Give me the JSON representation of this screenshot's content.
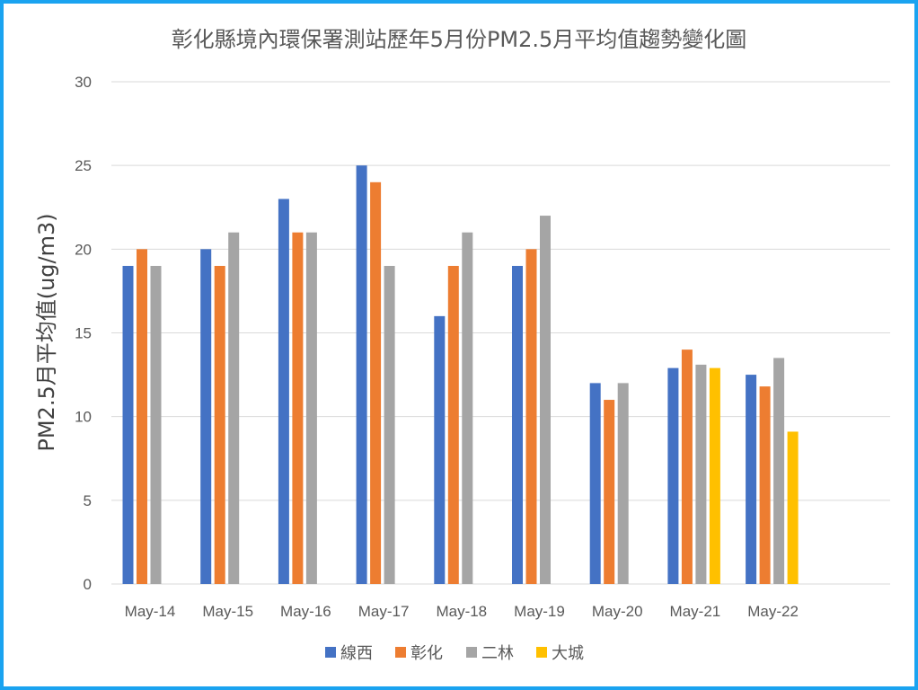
{
  "chart_data": {
    "type": "bar",
    "title": "彰化縣境內環保署測站歷年5月份PM2.5月平均值趨勢變化圖",
    "xlabel": "",
    "ylabel": "PM2.5月平均值(ug/m3)",
    "ylim": [
      0,
      30
    ],
    "yticks": [
      0,
      5,
      10,
      15,
      20,
      25,
      30
    ],
    "grid": true,
    "legend_position": "bottom",
    "categories": [
      "May-14",
      "May-15",
      "May-16",
      "May-17",
      "May-18",
      "May-19",
      "May-20",
      "May-21",
      "May-22"
    ],
    "series": [
      {
        "name": "線西",
        "color": "#4472c4",
        "values": [
          19,
          20,
          23,
          25,
          16,
          19,
          12,
          12.9,
          12.5
        ]
      },
      {
        "name": "彰化",
        "color": "#ed7d31",
        "values": [
          20,
          19,
          21,
          24,
          19,
          20,
          11,
          14,
          11.8
        ]
      },
      {
        "name": "二林",
        "color": "#a5a5a5",
        "values": [
          19,
          21,
          21,
          19,
          21,
          22,
          12,
          13.1,
          13.5
        ]
      },
      {
        "name": "大城",
        "color": "#ffc000",
        "values": [
          null,
          null,
          null,
          null,
          null,
          null,
          null,
          12.9,
          9.1
        ]
      }
    ]
  }
}
